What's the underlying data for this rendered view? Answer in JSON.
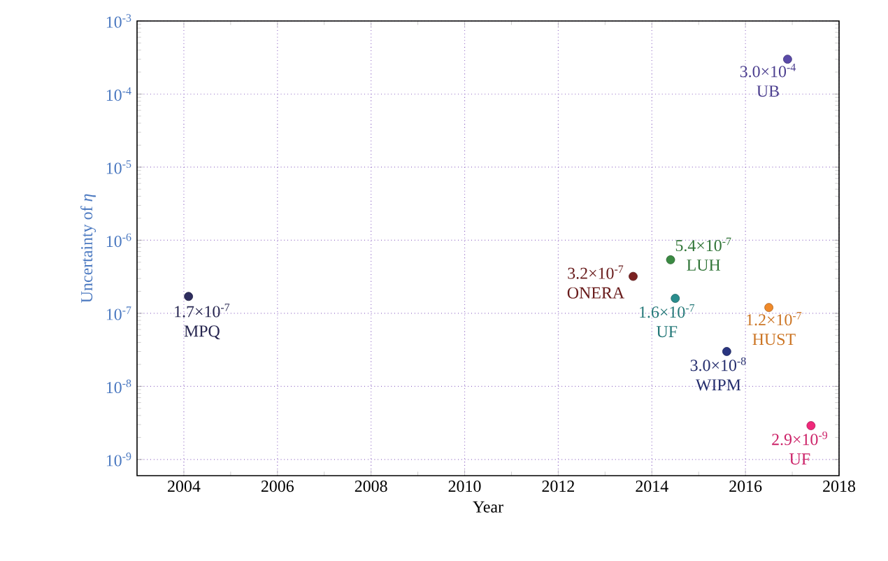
{
  "chart_data": {
    "type": "scatter",
    "xlabel": "Year",
    "ylabel": "Uncertainty of *η*",
    "xlim": [
      2003,
      2018
    ],
    "xticks": [
      2004,
      2006,
      2008,
      2010,
      2012,
      2014,
      2016,
      2018
    ],
    "ylim": [
      6e-10,
      0.001
    ],
    "yticks": [
      {
        "value": 1e-09,
        "label": "10$^{-9}$"
      },
      {
        "value": 1e-08,
        "label": "10$^{-8}$"
      },
      {
        "value": 1e-07,
        "label": "10$^{-7}$"
      },
      {
        "value": 1e-06,
        "label": "10$^{-6}$"
      },
      {
        "value": 1e-05,
        "label": "10$^{-5}$"
      },
      {
        "value": 0.0001,
        "label": "10$^{-4}$"
      },
      {
        "value": 0.001,
        "label": "10$^{-3}$"
      }
    ],
    "log": "y",
    "grid": true,
    "marker": "circle",
    "series": [
      {
        "name": "MPQ",
        "color": "#2e2d5e",
        "x": [
          2004.1
        ],
        "values": [
          1.7e-07
        ],
        "value_labels": [
          "1.7×10$^{-7}$"
        ]
      },
      {
        "name": "ONERA",
        "color": "#7b2121",
        "x": [
          2013.6
        ],
        "values": [
          3.2e-07
        ],
        "value_labels": [
          "3.2×10$^{-7}$"
        ]
      },
      {
        "name": "LUH",
        "color": "#3a8a42",
        "x": [
          2014.4
        ],
        "values": [
          5.4e-07
        ],
        "value_labels": [
          "5.4×10$^{-7}$"
        ]
      },
      {
        "name": "UF",
        "color": "#2a8d8d",
        "x": [
          2014.5
        ],
        "values": [
          1.6e-07
        ],
        "value_labels": [
          "1.6×10$^{-7}$"
        ]
      },
      {
        "name": "WIPM",
        "color": "#2a3580",
        "x": [
          2015.6
        ],
        "values": [
          3e-08
        ],
        "value_labels": [
          "3.0×10$^{-8}$"
        ]
      },
      {
        "name": "HUST",
        "color": "#f08a2a",
        "x": [
          2016.5
        ],
        "values": [
          1.2e-07
        ],
        "value_labels": [
          "1.2×10$^{-7}$"
        ]
      },
      {
        "name": "UF",
        "color": "#f0287a",
        "x": [
          2017.4
        ],
        "values": [
          2.9e-09
        ],
        "value_labels": [
          "2.9×10$^{-9}$"
        ]
      },
      {
        "name": "UB",
        "color": "#5a4aa8",
        "x": [
          2016.9
        ],
        "values": [
          0.0003
        ],
        "value_labels": [
          "3.0×10$^{-4}$"
        ]
      }
    ]
  }
}
